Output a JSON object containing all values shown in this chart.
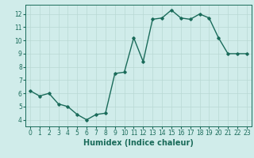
{
  "x": [
    0,
    1,
    2,
    3,
    4,
    5,
    6,
    7,
    8,
    9,
    10,
    11,
    12,
    13,
    14,
    15,
    16,
    17,
    18,
    19,
    20,
    21,
    22,
    23
  ],
  "y": [
    6.2,
    5.8,
    6.0,
    5.2,
    5.0,
    4.4,
    4.0,
    4.4,
    4.5,
    7.5,
    7.6,
    10.2,
    8.4,
    11.6,
    11.7,
    12.3,
    11.7,
    11.6,
    12.0,
    11.7,
    10.2,
    9.0,
    9.0,
    9.0
  ],
  "xlabel": "Humidex (Indice chaleur)",
  "xlim": [
    -0.5,
    23.5
  ],
  "ylim": [
    3.5,
    12.7
  ],
  "yticks": [
    4,
    5,
    6,
    7,
    8,
    9,
    10,
    11,
    12
  ],
  "xticks": [
    0,
    1,
    2,
    3,
    4,
    5,
    6,
    7,
    8,
    9,
    10,
    11,
    12,
    13,
    14,
    15,
    16,
    17,
    18,
    19,
    20,
    21,
    22,
    23
  ],
  "line_color": "#1a6b5a",
  "marker": "D",
  "marker_size": 1.8,
  "line_width": 1.0,
  "bg_color": "#d0ecea",
  "grid_color": "#b8d8d4",
  "tick_label_size": 5.5,
  "xlabel_size": 7.0,
  "xlabel_bold": true
}
